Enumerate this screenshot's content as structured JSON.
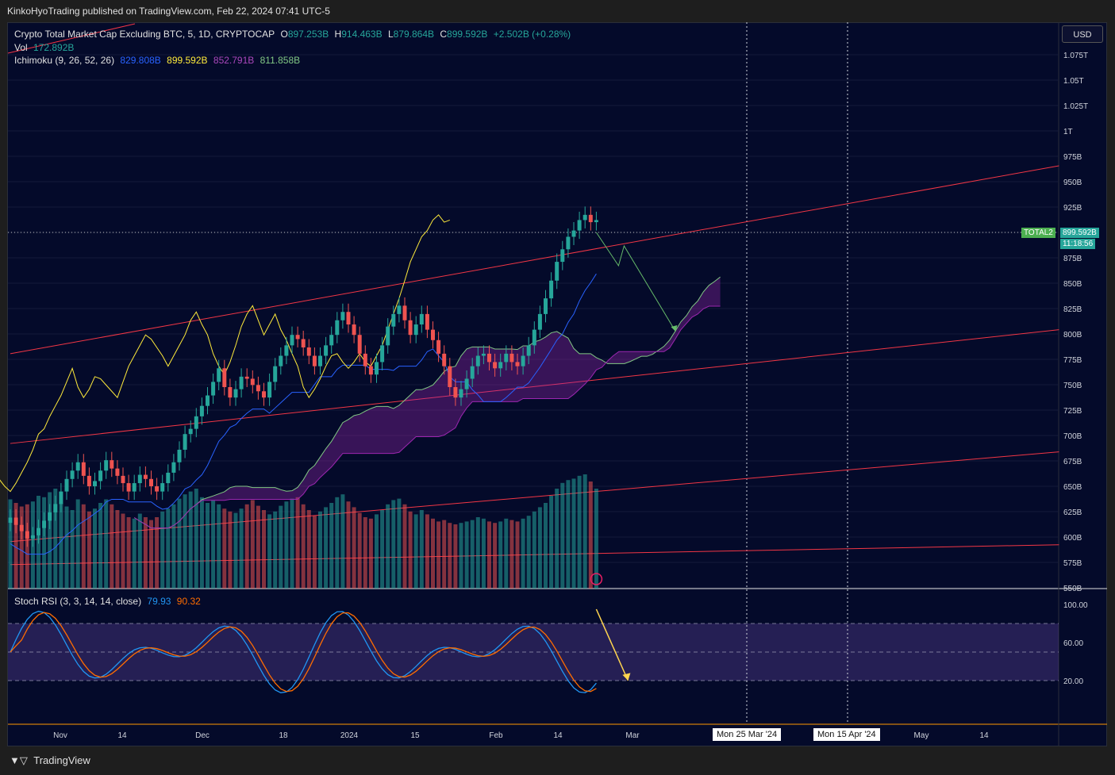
{
  "publisher": "KinkoHyoTrading published on TradingView.com, Feb 22, 2024 07:41 UTC-5",
  "footer_brand": "TradingView",
  "footer_icon": "tradingview-logo-icon",
  "currency": "USD",
  "symbol_tag": "TOTAL2",
  "price_tag": "899.592B",
  "countdown": "11:18:56",
  "legend": {
    "title": "Crypto Total Market Cap Excluding BTC, 5, 1D, CRYPTOCAP",
    "o_label": "O",
    "o_value": "897.253B",
    "h_label": "H",
    "h_value": "914.463B",
    "l_label": "L",
    "l_value": "879.864B",
    "c_label": "C",
    "c_value": "899.592B",
    "change": "+2.502B (+0.28%)",
    "vol_label": "Vol",
    "vol_value": "172.892B",
    "ichimoku_label": "Ichimoku (9, 26, 52, 26)",
    "ichi_v1": "829.808B",
    "ichi_v2": "899.592B",
    "ichi_v3": "852.791B",
    "ichi_v4": "811.858B",
    "stoch_label": "Stoch RSI (3, 3, 14, 14, close)",
    "stoch_k": "79.93",
    "stoch_d": "90.32"
  },
  "crosshair_dates": [
    "Mon 25 Mar '24",
    "Mon 15 Apr '24"
  ],
  "colors": {
    "background": "#040a2a",
    "up": "#26a69a",
    "down": "#ef5350",
    "conversion": "#2962ff",
    "lagging": "#ffeb3b",
    "lead_b": "#9c27b0",
    "lead_a": "#81c784",
    "channel": "#f23645",
    "stoch_k": "#2196f3",
    "stoch_d": "#ff6d00",
    "stoch_band": "#7e57c2"
  },
  "chart_data": {
    "type": "candlestick",
    "title": "Crypto Total Market Cap Excluding BTC, 5, 1D, CRYPTOCAP",
    "y_axis": [
      "1.075T",
      "1.05T",
      "1.025T",
      "1T",
      "975B",
      "950B",
      "925B",
      "900B",
      "875B",
      "850B",
      "825B",
      "800B",
      "775B",
      "750B",
      "725B",
      "700B",
      "675B",
      "650B",
      "625B",
      "600B",
      "575B",
      "550B"
    ],
    "ylim": [
      547,
      1088
    ],
    "x_axis": [
      "Nov",
      "14",
      "Dec",
      "18",
      "2024",
      "15",
      "Feb",
      "14",
      "Mar",
      "Mon 25 Mar '24",
      "Mon 15 Apr '24",
      "May",
      "14"
    ],
    "stoch_axis": [
      "100.00",
      "60.00",
      "20.00"
    ],
    "stoch_ylim": [
      -25,
      115
    ],
    "stoch_band": [
      20,
      80
    ],
    "stoch_mid": 50,
    "closes": [
      615,
      608,
      602,
      595,
      598,
      605,
      612,
      620,
      628,
      640,
      652,
      660,
      668,
      655,
      645,
      650,
      660,
      670,
      662,
      655,
      648,
      640,
      648,
      656,
      652,
      645,
      640,
      648,
      658,
      668,
      680,
      695,
      700,
      712,
      722,
      732,
      745,
      758,
      740,
      730,
      738,
      750,
      748,
      742,
      736,
      730,
      745,
      760,
      770,
      780,
      790,
      786,
      778,
      770,
      760,
      770,
      780,
      790,
      804,
      812,
      800,
      790,
      772,
      760,
      752,
      764,
      780,
      798,
      810,
      818,
      804,
      790,
      800,
      810,
      795,
      785,
      772,
      760,
      740,
      730,
      738,
      748,
      760,
      770,
      772,
      764,
      758,
      764,
      772,
      764,
      760,
      770,
      780,
      795,
      810,
      825,
      842,
      860,
      872,
      884,
      890,
      900,
      905,
      898,
      900
    ],
    "volume": [
      125,
      120,
      115,
      118,
      122,
      130,
      128,
      135,
      140,
      120,
      115,
      110,
      125,
      118,
      108,
      112,
      120,
      125,
      118,
      110,
      105,
      100,
      98,
      105,
      100,
      96,
      100,
      108,
      112,
      118,
      126,
      132,
      136,
      140,
      128,
      120,
      124,
      118,
      112,
      108,
      106,
      112,
      118,
      124,
      116,
      110,
      104,
      108,
      116,
      122,
      126,
      128,
      118,
      110,
      102,
      108,
      114,
      120,
      128,
      132,
      122,
      114,
      106,
      100,
      98,
      104,
      110,
      118,
      124,
      126,
      118,
      108,
      104,
      110,
      104,
      98,
      94,
      96,
      92,
      90,
      92,
      94,
      96,
      100,
      98,
      94,
      92,
      94,
      98,
      96,
      94,
      98,
      102,
      108,
      114,
      120,
      130,
      140,
      148,
      152,
      154,
      158,
      160,
      150,
      140
    ],
    "events_x": [
      8,
      21,
      34,
      50,
      61,
      78
    ],
    "channel_lines": [
      {
        "x0": 0,
        "y0": 772,
        "x1": 132,
        "y1": 952
      },
      {
        "x0": 0,
        "y0": 686,
        "x1": 132,
        "y1": 795
      },
      {
        "x0": 0,
        "y0": 592,
        "x1": 132,
        "y1": 678
      },
      {
        "x0": 0,
        "y0": 570,
        "x1": 132,
        "y1": 589
      }
    ]
  }
}
